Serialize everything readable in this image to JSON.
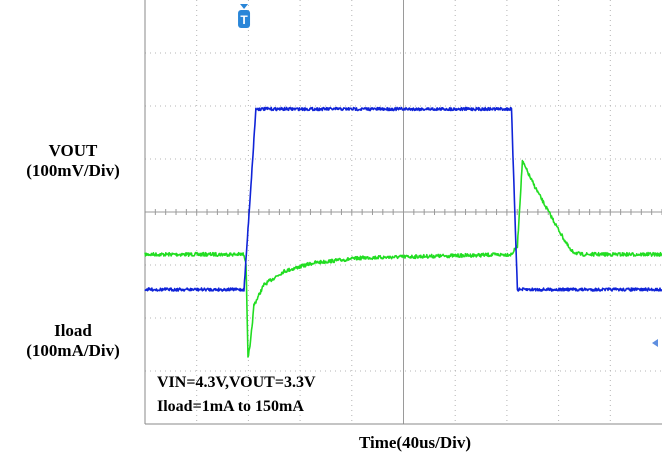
{
  "chart_data": {
    "type": "line",
    "title": "",
    "xlabel": "Time(40us/Div)",
    "x_unit": "us",
    "xlim": [
      0,
      522
    ],
    "trigger_marker": "T",
    "grid": true,
    "series": [
      {
        "name": "VOUT",
        "label_line1": "VOUT",
        "label_line2": "(100mV/Div)",
        "unit": "mV",
        "ylim": [
          -100,
          150
        ],
        "color": "#22dd22",
        "noise": 1.8,
        "points": [
          [
            0,
            0
          ],
          [
            100,
            0
          ],
          [
            102,
            -5
          ],
          [
            104,
            -60
          ],
          [
            106,
            -55
          ],
          [
            110,
            -30
          ],
          [
            120,
            -18
          ],
          [
            140,
            -10
          ],
          [
            170,
            -5
          ],
          [
            220,
            -2
          ],
          [
            370,
            0
          ],
          [
            376,
            5
          ],
          [
            381,
            55
          ],
          [
            390,
            44
          ],
          [
            400,
            33
          ],
          [
            420,
            12
          ],
          [
            430,
            2
          ],
          [
            440,
            0
          ],
          [
            522,
            0
          ]
        ]
      },
      {
        "name": "Iload",
        "label_line1": "Iload",
        "label_line2": "(100mA/Div)",
        "unit": "mA",
        "ylim": [
          -110,
          240
        ],
        "color": "#1024d8",
        "noise": 1.5,
        "points": [
          [
            0,
            1
          ],
          [
            100,
            1
          ],
          [
            112,
            150
          ],
          [
            370,
            150
          ],
          [
            376,
            1
          ],
          [
            522,
            1
          ]
        ]
      }
    ],
    "annotations": [
      "VIN=4.3V,VOUT=3.3V",
      "Iload=1mA to 150mA"
    ]
  }
}
